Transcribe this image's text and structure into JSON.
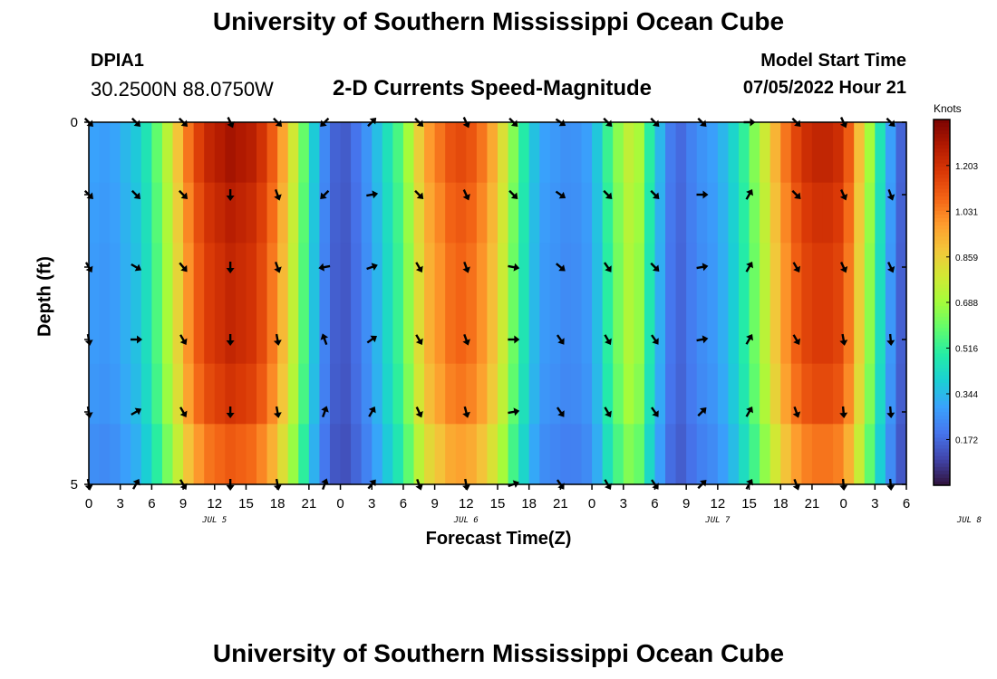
{
  "header": {
    "title": "University of Southern Mississippi Ocean Cube",
    "station_id": "DPIA1",
    "coordinates": "30.2500N  88.0750W",
    "chart_title": "2-D Currents Speed-Magnitude",
    "model_start_label": "Model Start Time",
    "model_start_value": "07/05/2022 Hour 21"
  },
  "footer": {
    "title": "University of Southern Mississippi Ocean Cube"
  },
  "chart_data": {
    "type": "heatmap",
    "title": "2-D Currents Speed-Magnitude",
    "xlabel": "Forecast Time(Z)",
    "ylabel": "Depth (ft)",
    "units": "Knots",
    "ylim": [
      0,
      5
    ],
    "y_tick_labels": [
      "0",
      "5"
    ],
    "x_tick_labels": [
      "0",
      "3",
      "6",
      "9",
      "12",
      "15",
      "18",
      "21",
      "0",
      "3",
      "6",
      "9",
      "12",
      "15",
      "18",
      "21",
      "0",
      "3",
      "6",
      "9",
      "12",
      "15",
      "18",
      "21",
      "0",
      "3",
      "6"
    ],
    "day_labels": [
      {
        "label": "JUL 5",
        "hour": 12
      },
      {
        "label": "JUL 6",
        "hour": 36
      },
      {
        "label": "JUL 7",
        "hour": 60
      },
      {
        "label": "JUL 8",
        "hour": 84
      }
    ],
    "hours_range": [
      0,
      78
    ],
    "colorbar": {
      "ticks": [
        "1.203",
        "1.031",
        "0.859",
        "0.688",
        "0.516",
        "0.344",
        "0.172"
      ],
      "min": 0,
      "max": 1.376,
      "colors": [
        "#30123b",
        "#4145ab",
        "#4675ed",
        "#39a2fc",
        "#1bcfd4",
        "#24eca6",
        "#61fc6c",
        "#a4fc3b",
        "#d1e834",
        "#f3c63a",
        "#fe9b2d",
        "#f36315",
        "#d93806",
        "#b11901",
        "#7a0402"
      ]
    },
    "speed_profile": [
      {
        "hour": 0,
        "value": 0.3
      },
      {
        "hour": 2,
        "value": 0.28
      },
      {
        "hour": 5,
        "value": 0.4
      },
      {
        "hour": 7,
        "value": 0.65
      },
      {
        "hour": 9.5,
        "value": 1.05
      },
      {
        "hour": 11,
        "value": 1.22
      },
      {
        "hour": 13.5,
        "value": 1.3
      },
      {
        "hour": 16,
        "value": 1.25
      },
      {
        "hour": 18,
        "value": 1.05
      },
      {
        "hour": 20,
        "value": 0.7
      },
      {
        "hour": 22,
        "value": 0.28
      },
      {
        "hour": 24,
        "value": 0.12
      },
      {
        "hour": 26,
        "value": 0.22
      },
      {
        "hour": 28,
        "value": 0.4
      },
      {
        "hour": 30,
        "value": 0.6
      },
      {
        "hour": 32,
        "value": 0.95
      },
      {
        "hour": 35,
        "value": 1.15
      },
      {
        "hour": 37,
        "value": 1.1
      },
      {
        "hour": 39,
        "value": 0.9
      },
      {
        "hour": 41,
        "value": 0.55
      },
      {
        "hour": 43,
        "value": 0.3
      },
      {
        "hour": 46,
        "value": 0.25
      },
      {
        "hour": 48,
        "value": 0.3
      },
      {
        "hour": 50,
        "value": 0.6
      },
      {
        "hour": 52,
        "value": 0.8
      },
      {
        "hour": 54,
        "value": 0.4
      },
      {
        "hour": 56,
        "value": 0.15
      },
      {
        "hour": 58,
        "value": 0.25
      },
      {
        "hour": 60,
        "value": 0.3
      },
      {
        "hour": 62,
        "value": 0.45
      },
      {
        "hour": 64,
        "value": 0.7
      },
      {
        "hour": 66,
        "value": 1.0
      },
      {
        "hour": 68,
        "value": 1.2
      },
      {
        "hour": 70,
        "value": 1.25
      },
      {
        "hour": 72,
        "value": 1.2
      },
      {
        "hour": 74,
        "value": 0.8
      },
      {
        "hour": 76,
        "value": 0.35
      },
      {
        "hour": 78,
        "value": 0.1
      }
    ],
    "depth_factors": [
      1.0,
      0.97,
      0.95,
      0.95,
      0.92,
      0.85
    ],
    "vector_depths": [
      0,
      1,
      2,
      3,
      4,
      5
    ],
    "vector_hours": [
      0,
      4.5,
      9,
      13.5,
      18,
      22.5,
      27,
      31.5,
      36,
      40.5,
      45,
      49.5,
      54,
      58.5,
      63,
      67.5,
      72,
      76.5
    ],
    "vector_directions_deg": [
      [
        135,
        135,
        135,
        155,
        135,
        225,
        45,
        135,
        155,
        135,
        125,
        135,
        135,
        135,
        90,
        135,
        155,
        135
      ],
      [
        135,
        135,
        135,
        180,
        160,
        225,
        80,
        135,
        155,
        135,
        125,
        135,
        135,
        90,
        30,
        135,
        155,
        160
      ],
      [
        150,
        120,
        140,
        180,
        160,
        260,
        70,
        150,
        160,
        100,
        130,
        145,
        135,
        80,
        30,
        150,
        155,
        155
      ],
      [
        170,
        90,
        150,
        180,
        170,
        340,
        55,
        150,
        160,
        90,
        145,
        150,
        145,
        80,
        30,
        150,
        170,
        175
      ],
      [
        170,
        60,
        150,
        180,
        170,
        20,
        30,
        155,
        165,
        80,
        145,
        150,
        145,
        45,
        30,
        160,
        175,
        175
      ],
      [
        170,
        30,
        150,
        180,
        170,
        20,
        40,
        160,
        170,
        70,
        145,
        150,
        145,
        45,
        30,
        160,
        175,
        175
      ]
    ]
  }
}
